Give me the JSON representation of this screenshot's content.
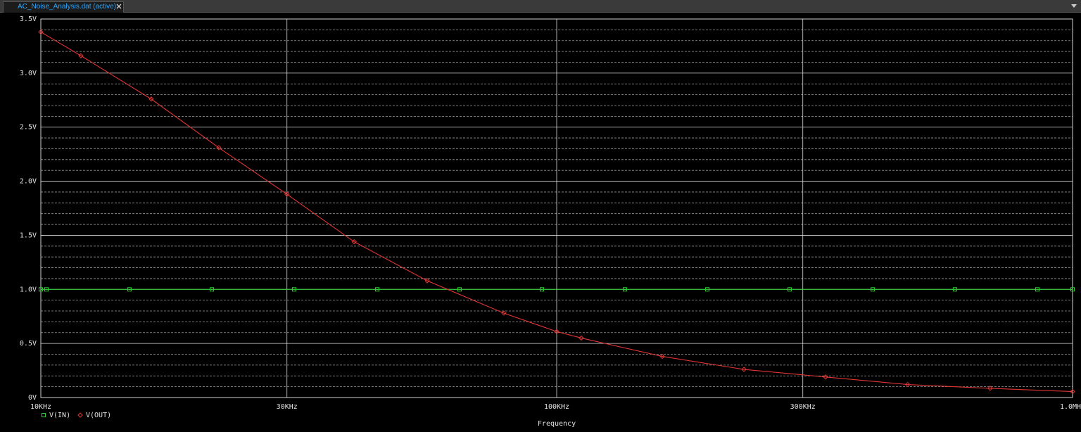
{
  "tab": {
    "title": "AC_Noise_Analysis.dat (active)"
  },
  "chart_data": {
    "type": "line",
    "xscale": "log",
    "grid": true,
    "xlabel": "Frequency",
    "xlim": [
      10000,
      1000000
    ],
    "xticks": [
      {
        "value": 10000,
        "label": "10KHz"
      },
      {
        "value": 30000,
        "label": "30KHz"
      },
      {
        "value": 100000,
        "label": "100KHz"
      },
      {
        "value": 300000,
        "label": "300KHz"
      },
      {
        "value": 1000000,
        "label": "1.0MHz"
      }
    ],
    "ylim": [
      0,
      3.5
    ],
    "yticks": [
      {
        "value": 0,
        "label": "0V"
      },
      {
        "value": 0.5,
        "label": "0.5V"
      },
      {
        "value": 1.0,
        "label": "1.0V"
      },
      {
        "value": 1.5,
        "label": "1.5V"
      },
      {
        "value": 2.0,
        "label": "2.0V"
      },
      {
        "value": 2.5,
        "label": "2.5V"
      },
      {
        "value": 3.0,
        "label": "3.0V"
      },
      {
        "value": 3.5,
        "label": "3.5V"
      }
    ],
    "yminorticks": [
      0.1,
      0.2,
      0.3,
      0.4,
      0.6,
      0.7,
      0.8,
      0.9,
      1.1,
      1.2,
      1.3,
      1.4,
      1.6,
      1.7,
      1.8,
      1.9,
      2.1,
      2.2,
      2.3,
      2.4,
      2.6,
      2.7,
      2.8,
      2.9,
      3.1,
      3.2,
      3.3,
      3.4
    ],
    "series": [
      {
        "name": "V(IN)",
        "color": "#33cc33",
        "marker": "square",
        "x": [
          10000,
          10254,
          14850,
          21460,
          30980,
          44890,
          64810,
          93620,
          135600,
          195900,
          282800,
          410000,
          591600,
          854600,
          1000000
        ],
        "values": [
          1.0,
          1.0,
          1.0,
          1.0,
          1.0,
          1.0,
          1.0,
          1.0,
          1.0,
          1.0,
          1.0,
          1.0,
          1.0,
          1.0,
          1.0
        ]
      },
      {
        "name": "V(OUT)",
        "color": "#e03535",
        "marker": "diamond",
        "x": [
          10000,
          11960,
          16370,
          22130,
          30000,
          40500,
          56100,
          79000,
          100000,
          111600,
          160200,
          230700,
          332000,
          479000,
          692000,
          1000000
        ],
        "values": [
          3.38,
          3.16,
          2.76,
          2.31,
          1.88,
          1.44,
          1.08,
          0.78,
          0.61,
          0.55,
          0.38,
          0.26,
          0.19,
          0.12,
          0.085,
          0.055
        ]
      }
    ]
  }
}
